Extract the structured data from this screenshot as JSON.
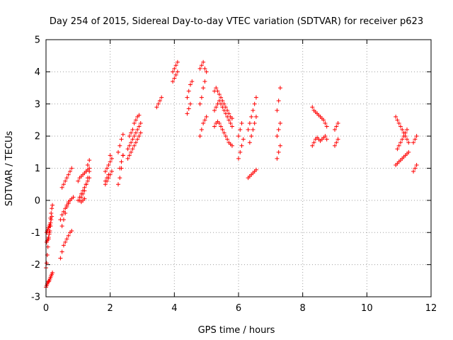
{
  "chart_data": {
    "type": "scatter",
    "title": "Day 254 of 2015, Sidereal Day-to-day VTEC variation (SDTVAR) for receiver p623",
    "xlabel": "GPS time / hours",
    "ylabel": "SDTVAR / TECUs",
    "xlim": [
      0,
      12
    ],
    "ylim": [
      -3,
      5
    ],
    "xticks": [
      "0",
      "2",
      "4",
      "6",
      "8",
      "10",
      "12"
    ],
    "yticks": [
      "-3",
      "-2",
      "-1",
      "0",
      "1",
      "2",
      "3",
      "4",
      "5"
    ],
    "grid": true,
    "marker": "+",
    "color": "#ff0000",
    "series": [
      {
        "name": "SDTVAR",
        "x": [
          0.0,
          0.02,
          0.04,
          0.06,
          0.08,
          0.1,
          0.12,
          0.14,
          0.16,
          0.18,
          0.2,
          0.0,
          0.02,
          0.04,
          0.06,
          0.08,
          0.1,
          0.12,
          0.14,
          0.16,
          0.18,
          0.2,
          0.02,
          0.04,
          0.06,
          0.08,
          0.1,
          0.12,
          0.14,
          0.16,
          0.18,
          0.02,
          0.04,
          0.06,
          0.08,
          0.1,
          0.12,
          0.14,
          0.45,
          0.5,
          0.55,
          0.6,
          0.65,
          0.7,
          0.75,
          0.8,
          0.45,
          0.5,
          0.55,
          0.6,
          0.65,
          0.7,
          0.75,
          0.8,
          0.85,
          0.5,
          0.55,
          0.6,
          0.65,
          0.7,
          0.75,
          0.8,
          0.5,
          0.55,
          0.6,
          0.65,
          0.7,
          0.75,
          1.0,
          1.05,
          1.1,
          1.15,
          1.2,
          1.25,
          1.3,
          1.35,
          1.0,
          1.05,
          1.1,
          1.15,
          1.2,
          1.25,
          1.3,
          1.35,
          1.05,
          1.1,
          1.15,
          1.2,
          1.25,
          1.3,
          1.35,
          1.1,
          1.15,
          1.2,
          1.25,
          1.3,
          1.35,
          1.85,
          1.9,
          1.95,
          2.0,
          2.05,
          1.85,
          1.9,
          1.95,
          2.0,
          2.05,
          1.85,
          1.9,
          1.95,
          2.0,
          2.25,
          2.3,
          2.35,
          2.4,
          2.25,
          2.3,
          2.35,
          2.4,
          2.3,
          2.35,
          2.4,
          2.55,
          2.6,
          2.65,
          2.7,
          2.75,
          2.8,
          2.85,
          2.9,
          2.95,
          2.55,
          2.6,
          2.65,
          2.7,
          2.75,
          2.8,
          2.85,
          2.9,
          2.95,
          2.6,
          2.65,
          2.7,
          2.75,
          2.8,
          2.85,
          2.9,
          3.45,
          3.5,
          3.55,
          3.6,
          3.95,
          4.0,
          4.05,
          4.1,
          3.95,
          4.0,
          4.05,
          4.1,
          4.4,
          4.45,
          4.5,
          4.55,
          4.4,
          4.45,
          4.5,
          4.8,
          4.85,
          4.9,
          4.95,
          5.0,
          4.8,
          4.85,
          4.9,
          4.95,
          5.0,
          4.8,
          4.85,
          4.9,
          4.95,
          5.25,
          5.3,
          5.35,
          5.4,
          5.45,
          5.5,
          5.55,
          5.6,
          5.65,
          5.7,
          5.75,
          5.8,
          5.25,
          5.3,
          5.35,
          5.4,
          5.45,
          5.5,
          5.55,
          5.6,
          5.65,
          5.7,
          5.75,
          5.8,
          5.25,
          5.3,
          5.35,
          5.4,
          5.45,
          5.5,
          5.55,
          5.6,
          5.65,
          5.7,
          5.75,
          5.8,
          6.0,
          6.05,
          6.1,
          6.15,
          6.0,
          6.05,
          6.1,
          6.3,
          6.35,
          6.4,
          6.45,
          6.5,
          6.55,
          6.3,
          6.35,
          6.4,
          6.45,
          6.5,
          6.55,
          6.35,
          6.4,
          6.45,
          6.5,
          6.55,
          7.2,
          7.25,
          7.3,
          7.2,
          7.25,
          7.3,
          7.2,
          7.25,
          7.3,
          8.3,
          8.35,
          8.4,
          8.45,
          8.5,
          8.55,
          8.6,
          8.65,
          8.7,
          8.75,
          8.3,
          8.35,
          8.4,
          8.45,
          8.5,
          8.55,
          8.6,
          8.65,
          8.7,
          8.75,
          9.0,
          9.05,
          9.1,
          9.0,
          9.05,
          9.1,
          10.9,
          10.95,
          11.0,
          11.05,
          11.1,
          11.15,
          11.2,
          11.25,
          11.3,
          10.9,
          10.95,
          11.0,
          11.05,
          11.1,
          11.15,
          11.2,
          11.25,
          11.3,
          10.95,
          11.0,
          11.05,
          11.1,
          11.15,
          11.2,
          11.25,
          11.45,
          11.5,
          11.55,
          11.45,
          11.5,
          11.55
        ],
        "y": [
          -2.7,
          -2.65,
          -2.6,
          -2.55,
          -2.52,
          -2.5,
          -2.45,
          -2.4,
          -2.35,
          -2.3,
          -2.25,
          -2.1,
          -1.95,
          -1.7,
          -1.45,
          -1.2,
          -1.0,
          -0.8,
          -0.55,
          -0.4,
          -0.25,
          -0.15,
          -1.0,
          -0.95,
          -0.9,
          -0.85,
          -0.8,
          -0.75,
          -0.7,
          -0.6,
          -0.5,
          -1.3,
          -1.25,
          -1.2,
          -1.15,
          -1.05,
          -0.95,
          -0.8,
          -1.8,
          -1.6,
          -1.4,
          -1.3,
          -1.2,
          -1.1,
          -1.0,
          -0.95,
          -0.6,
          -0.45,
          -0.35,
          -0.25,
          -0.15,
          -0.05,
          0.0,
          0.05,
          0.1,
          0.4,
          0.5,
          0.6,
          0.7,
          0.8,
          0.9,
          1.0,
          -0.8,
          -0.6,
          -0.4,
          -0.2,
          -0.1,
          0.0,
          0.0,
          0.1,
          0.2,
          0.3,
          0.4,
          0.5,
          0.6,
          0.7,
          0.6,
          0.7,
          0.75,
          0.8,
          0.85,
          0.9,
          0.95,
          1.0,
          0.0,
          0.1,
          0.2,
          0.3,
          0.5,
          0.7,
          0.9,
          -0.05,
          0.0,
          0.05,
          0.9,
          1.1,
          1.25,
          0.5,
          0.6,
          0.7,
          0.8,
          0.9,
          0.9,
          1.0,
          1.1,
          1.2,
          1.3,
          0.6,
          0.7,
          0.8,
          1.4,
          0.5,
          0.7,
          1.0,
          1.4,
          1.5,
          1.7,
          1.9,
          2.05,
          1.0,
          1.2,
          1.4,
          1.3,
          1.4,
          1.5,
          1.6,
          1.7,
          1.8,
          1.9,
          2.0,
          2.1,
          1.6,
          1.7,
          1.8,
          1.9,
          2.0,
          2.1,
          2.2,
          2.3,
          2.4,
          2.0,
          2.1,
          2.2,
          2.4,
          2.5,
          2.6,
          2.65,
          2.9,
          3.0,
          3.1,
          3.2,
          3.7,
          3.8,
          3.9,
          4.0,
          4.0,
          4.1,
          4.2,
          4.3,
          3.2,
          3.4,
          3.6,
          3.7,
          2.7,
          2.85,
          3.0,
          2.0,
          2.2,
          2.4,
          2.5,
          2.6,
          3.0,
          3.2,
          3.5,
          3.7,
          4.0,
          4.1,
          4.2,
          4.3,
          4.1,
          2.3,
          2.4,
          2.45,
          2.4,
          2.3,
          2.2,
          2.1,
          2.0,
          1.9,
          1.8,
          1.75,
          1.7,
          2.8,
          2.9,
          3.0,
          3.1,
          3.0,
          2.9,
          2.8,
          2.7,
          2.6,
          2.5,
          2.4,
          2.3,
          3.4,
          3.5,
          3.4,
          3.3,
          3.2,
          3.1,
          3.0,
          2.9,
          2.8,
          2.7,
          2.6,
          2.55,
          1.3,
          1.5,
          1.7,
          1.9,
          2.0,
          2.2,
          2.4,
          0.7,
          0.75,
          0.8,
          0.85,
          0.9,
          0.95,
          2.2,
          2.4,
          2.6,
          2.8,
          3.0,
          3.2,
          1.8,
          2.0,
          2.2,
          2.4,
          2.6,
          1.3,
          1.5,
          1.7,
          2.0,
          2.2,
          2.4,
          2.8,
          3.1,
          3.5,
          2.9,
          2.8,
          2.75,
          2.7,
          2.65,
          2.6,
          2.55,
          2.5,
          2.4,
          2.3,
          1.7,
          1.8,
          1.9,
          1.95,
          1.9,
          1.85,
          1.9,
          1.95,
          2.0,
          1.9,
          1.7,
          1.8,
          1.9,
          2.2,
          2.3,
          2.4,
          2.6,
          2.5,
          2.4,
          2.3,
          2.2,
          2.1,
          2.0,
          1.9,
          1.8,
          1.1,
          1.15,
          1.2,
          1.25,
          1.3,
          1.35,
          1.4,
          1.45,
          1.5,
          1.6,
          1.7,
          1.8,
          1.9,
          2.0,
          2.1,
          2.2,
          0.9,
          1.0,
          1.1,
          1.8,
          1.9,
          2.0
        ]
      }
    ]
  }
}
